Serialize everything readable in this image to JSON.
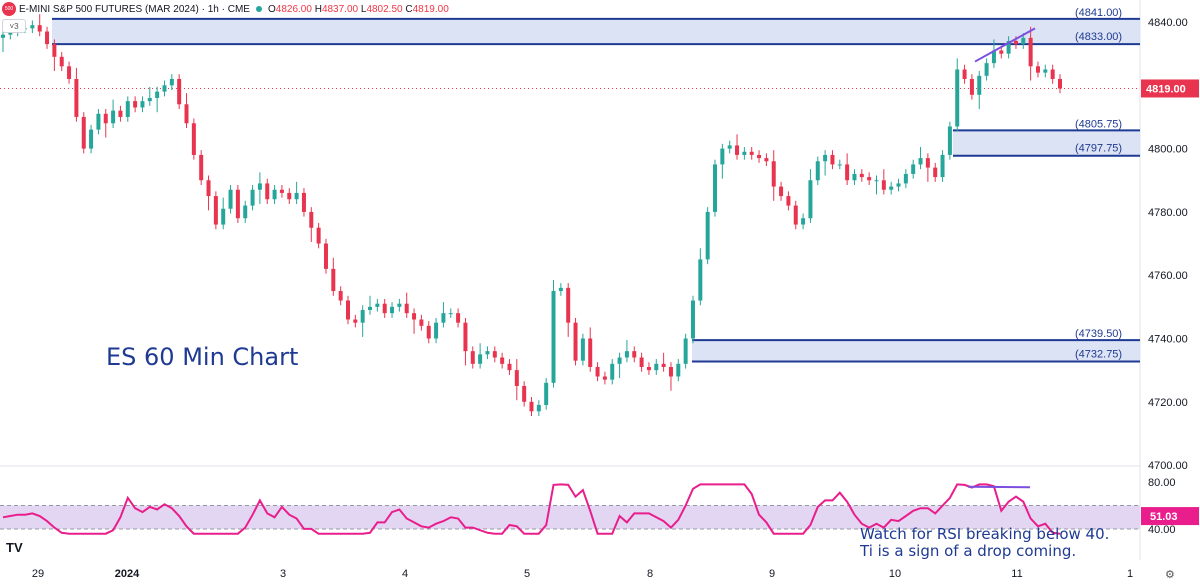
{
  "header": {
    "logo_text": "500",
    "symbol": "E-MINI S&P 500 FUTURES (MAR 2024) · 1h · CME",
    "ohlc": {
      "open_label": "O",
      "open": "4826.00",
      "high_label": "H",
      "high": "4837.00",
      "low_label": "L",
      "low": "4802.50",
      "close_label": "C",
      "close": "4819.00"
    },
    "indicator_count": "3"
  },
  "annotation_title": "ES 60 Min Chart",
  "rsi_note": [
    "Watch for RSI breaking below 40.",
    "Ti is a sign of a drop coming."
  ],
  "watermark": "TV",
  "colors": {
    "up": "#26a69a",
    "down": "#e8344e",
    "zone_fill": "#d6def2",
    "zone_line": "#1f3a93",
    "rsi": "#e91e8c",
    "rsi_band": "#e3d6f3",
    "divergence": "#7b4fe0"
  },
  "chart_data": {
    "type": "candlestick",
    "price_axis": {
      "min": 4700,
      "max": 4841,
      "ticks": [
        "4840.00",
        "4820.00",
        "4800.00",
        "4780.00",
        "4760.00",
        "4740.00",
        "4720.00",
        "4700.00"
      ]
    },
    "current_price": "4819.00",
    "x_axis_labels": [
      "29",
      "2024",
      "3",
      "4",
      "5",
      "8",
      "9",
      "10",
      "11",
      "1"
    ],
    "zones": [
      {
        "upper": 4841.0,
        "lower": 4833.0,
        "upper_label": "(4841.00)",
        "lower_label": "(4833.00)"
      },
      {
        "upper": 4805.75,
        "lower": 4797.75,
        "upper_label": "(4805.75)",
        "lower_label": "(4797.75)"
      },
      {
        "upper": 4739.5,
        "lower": 4732.75,
        "upper_label": "(4739.50)",
        "lower_label": "(4732.75)"
      }
    ],
    "series": [
      {
        "name": "close",
        "values": [
          4836,
          4837,
          4838,
          4838,
          4839,
          4837,
          4833,
          4829,
          4826,
          4822,
          4810,
          4800,
          4806,
          4811,
          4808,
          4812,
          4810,
          4815,
          4813,
          4815,
          4816,
          4818,
          4820,
          4822,
          4814,
          4808,
          4798,
          4790,
          4785,
          4776,
          4781,
          4787,
          4778,
          4782,
          4787,
          4789,
          4784,
          4787,
          4786,
          4784,
          4786,
          4780,
          4775,
          4770,
          4762,
          4755,
          4752,
          4746,
          4745,
          4749,
          4750,
          4751,
          4748,
          4750,
          4751,
          4748,
          4746,
          4744,
          4740,
          4745,
          4748,
          4748,
          4745,
          4736,
          4732,
          4735,
          4736,
          4734,
          4732,
          4730,
          4725,
          4720,
          4717,
          4719,
          4726,
          4755,
          4756,
          4745,
          4733,
          4740,
          4731,
          4728,
          4727,
          4732,
          4734,
          4736,
          4734,
          4731,
          4730,
          4732,
          4731,
          4728,
          4732,
          4740,
          4752,
          4765,
          4780,
          4795,
          4800,
          4801,
          4798,
          4799,
          4798,
          4797,
          4796,
          4788,
          4785,
          4782,
          4776,
          4778,
          4790,
          4796,
          4798,
          4795,
          4795,
          4790,
          4792,
          4791,
          4790,
          4790,
          4787,
          4788,
          4789,
          4792,
          4795,
          4797,
          4794,
          4791,
          4798,
          4807,
          4825,
          4822,
          4817,
          4823,
          4827,
          4831,
          4830,
          4834,
          4833,
          4835,
          4826,
          4824,
          4825,
          4822,
          4819
        ]
      }
    ],
    "rsi": {
      "axis_ticks": [
        "80.00",
        "40.00"
      ],
      "band": [
        40,
        60
      ],
      "current": "51.03"
    }
  }
}
